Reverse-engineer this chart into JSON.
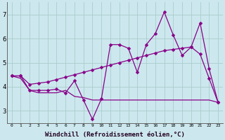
{
  "background_color": "#cce8ee",
  "grid_color": "#aacccc",
  "line_color": "#880088",
  "markersize": 2.5,
  "linewidth": 0.9,
  "xlabel": "Windchill (Refroidissement éolien,°C)",
  "xlabel_fontsize": 6.5,
  "ylabel_ticks": [
    3,
    4,
    5,
    6,
    7
  ],
  "xlim": [
    -0.5,
    23.5
  ],
  "ylim": [
    2.5,
    7.5
  ],
  "xtick_labels": [
    "0",
    "1",
    "2",
    "3",
    "4",
    "5",
    "6",
    "7",
    "8",
    "9",
    "10",
    "11",
    "12",
    "13",
    "14",
    "15",
    "16",
    "17",
    "18",
    "19",
    "20",
    "21",
    "22",
    "23"
  ],
  "line1_x": [
    0,
    1,
    2,
    3,
    4,
    5,
    6,
    7,
    8,
    9,
    10,
    11,
    12,
    13,
    14,
    15,
    16,
    17,
    18,
    19,
    20,
    21,
    22,
    23
  ],
  "line1_y": [
    4.45,
    4.45,
    3.85,
    3.85,
    3.85,
    3.9,
    3.75,
    4.25,
    3.45,
    2.65,
    3.5,
    5.75,
    5.75,
    5.6,
    4.6,
    5.75,
    6.2,
    7.1,
    6.15,
    5.3,
    5.65,
    5.35,
    4.35,
    3.35
  ],
  "line2_x": [
    0,
    1,
    2,
    3,
    4,
    5,
    6,
    7,
    8,
    9,
    10,
    11,
    12,
    13,
    14,
    15,
    16,
    17,
    18,
    19,
    20,
    21,
    22,
    23
  ],
  "line2_y": [
    4.45,
    4.35,
    3.85,
    3.75,
    3.75,
    3.75,
    3.85,
    3.6,
    3.55,
    3.45,
    3.45,
    3.45,
    3.45,
    3.45,
    3.45,
    3.45,
    3.45,
    3.45,
    3.45,
    3.45,
    3.45,
    3.45,
    3.45,
    3.35
  ],
  "line3_x": [
    0,
    1,
    2,
    3,
    4,
    5,
    6,
    7,
    8,
    9,
    10,
    11,
    12,
    13,
    14,
    15,
    16,
    17,
    18,
    19,
    20,
    21,
    22,
    23
  ],
  "line3_y": [
    4.45,
    4.45,
    4.1,
    4.15,
    4.2,
    4.3,
    4.4,
    4.5,
    4.6,
    4.7,
    4.8,
    4.9,
    5.0,
    5.1,
    5.2,
    5.3,
    5.4,
    5.5,
    5.55,
    5.6,
    5.65,
    6.65,
    4.75,
    3.35
  ]
}
